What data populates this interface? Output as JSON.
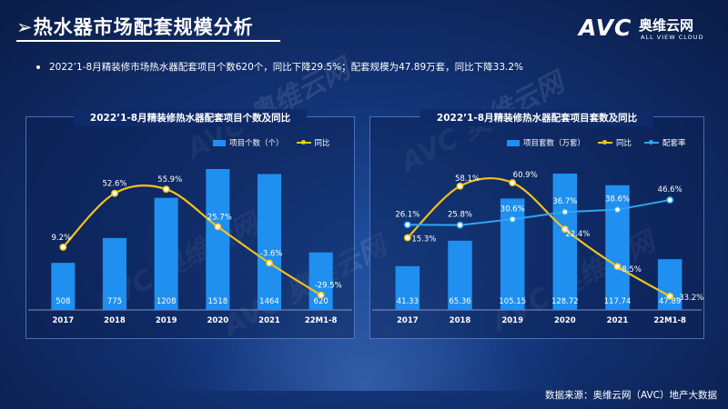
{
  "header": {
    "title": "热水器市场配套规模分析",
    "title_prefix": "➢",
    "logo_text": "AVC",
    "logo_cn": "奥维云网",
    "logo_en": "ALL VIEW CLOUD"
  },
  "summary": "2022’1-8月精装修市场热水器配套项目个数620个，同比下降29.5%；配套规模为47.89万套，同比下降33.2%",
  "source": "数据来源：奥维云网（AVC）地产大数据",
  "watermark": "AVC 奥维云网",
  "colors": {
    "bar": "#1f8ff0",
    "yoy_line": "#f2c21b",
    "rate_line": "#2ea6f2"
  },
  "chart_data": [
    {
      "type": "bar",
      "title": "2022’1-8月精装修热水器配套项目个数及同比",
      "categories": [
        "2017",
        "2018",
        "2019",
        "2020",
        "2021",
        "22M1-8"
      ],
      "series": [
        {
          "name": "项目个数（个）",
          "type": "bar",
          "values": [
            508,
            775,
            1208,
            1518,
            1464,
            620
          ],
          "labels": [
            "508",
            "775",
            "1208",
            "1518",
            "1464",
            "620"
          ]
        },
        {
          "name": "同比",
          "type": "line",
          "values": [
            9.2,
            52.6,
            55.9,
            25.7,
            -3.6,
            -29.5
          ],
          "labels": [
            "9.2%",
            "52.6%",
            "55.9%",
            "25.7%",
            "-3.6%",
            "-29.5%"
          ]
        }
      ],
      "legend": "top-right",
      "grid": false
    },
    {
      "type": "bar",
      "title": "2022’1-8月精装修热水器配套项目套数及同比",
      "categories": [
        "2017",
        "2018",
        "2019",
        "2020",
        "2021",
        "22M1-8"
      ],
      "series": [
        {
          "name": "项目套数（万套）",
          "type": "bar",
          "values": [
            41.33,
            65.36,
            105.15,
            128.72,
            117.74,
            47.89
          ],
          "labels": [
            "41.33",
            "65.36",
            "105.15",
            "128.72",
            "117.74",
            "47.89"
          ]
        },
        {
          "name": "同比",
          "type": "line",
          "values": [
            15.3,
            58.1,
            60.9,
            22.4,
            -8.5,
            -33.2
          ],
          "labels": [
            "15.3%",
            "58.1%",
            "60.9%",
            "22.4%",
            "-8.5%",
            "-33.2%"
          ]
        },
        {
          "name": "配套率",
          "type": "line",
          "values": [
            26.1,
            25.8,
            30.6,
            36.7,
            38.6,
            46.6
          ],
          "labels": [
            "26.1%",
            "25.8%",
            "30.6%",
            "36.7%",
            "38.6%",
            "46.6%"
          ]
        }
      ],
      "legend": "top-right",
      "grid": false
    }
  ]
}
